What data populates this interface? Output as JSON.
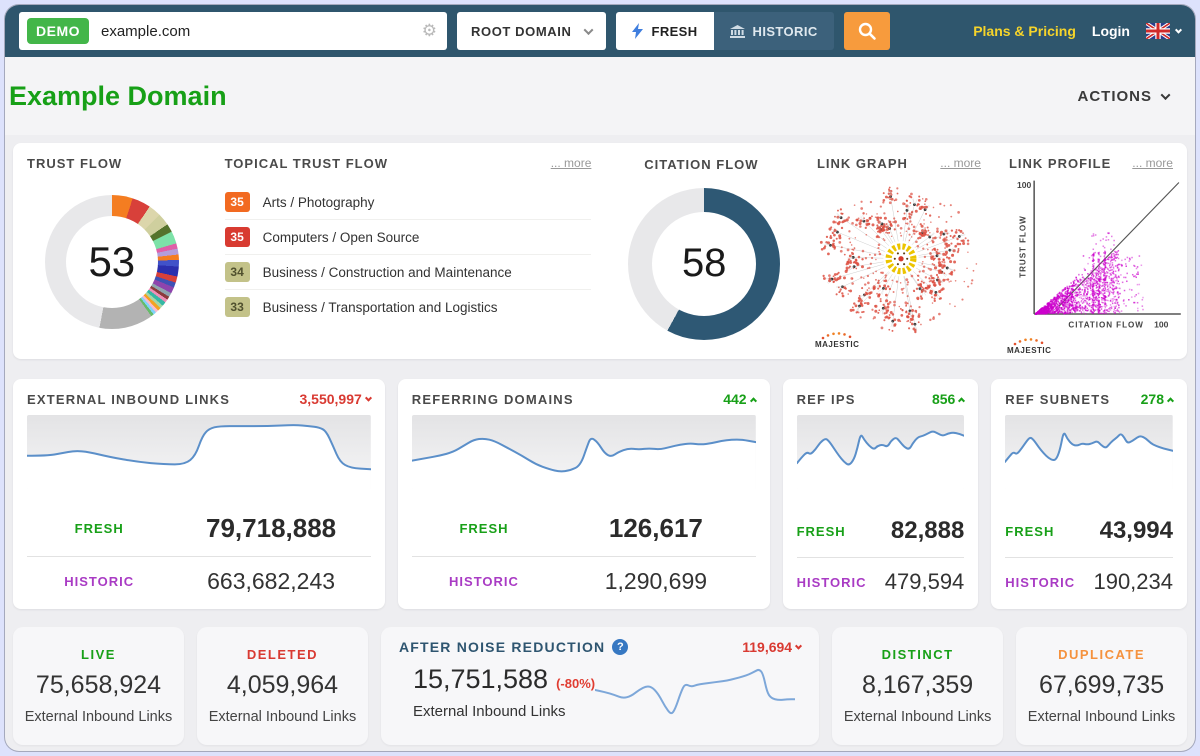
{
  "colors": {
    "header_bg": "#2f566d",
    "accent_orange": "#f79b3d",
    "fresh_green": "#18a018",
    "historic_purple": "#a93bc4",
    "delta_down_red": "#d93a32",
    "delta_up_green": "#18a018",
    "title_green": "#17a017",
    "citation_blue": "#2e5874"
  },
  "icons": {
    "gear": "⚙",
    "help": "?"
  },
  "header": {
    "demo_badge": "DEMO",
    "search_value": "example.com",
    "root_domain_label": "ROOT DOMAIN",
    "fresh_label": "FRESH",
    "historic_label": "HISTORIC",
    "plans_pricing": "Plans & Pricing",
    "login": "Login"
  },
  "title_bar": {
    "title": "Example Domain",
    "actions_label": "ACTIONS"
  },
  "panels": {
    "trust_flow": {
      "title": "TRUST FLOW",
      "value": "53"
    },
    "topical": {
      "title": "TOPICAL TRUST FLOW",
      "more": "... more",
      "items": [
        {
          "score": "35",
          "color": "#f26a21",
          "text_color": "#ffffff",
          "label": "Arts / Photography"
        },
        {
          "score": "35",
          "color": "#d83b31",
          "text_color": "#ffffff",
          "label": "Computers / Open Source"
        },
        {
          "score": "34",
          "color": "#c3c289",
          "text_color": "#50502e",
          "label": "Business / Construction and Maintenance"
        },
        {
          "score": "33",
          "color": "#c3c289",
          "text_color": "#50502e",
          "label": "Business / Transportation and Logistics"
        }
      ]
    },
    "citation_flow": {
      "title": "CITATION FLOW",
      "value": "58"
    },
    "link_graph": {
      "title": "LINK GRAPH",
      "more": "... more",
      "brand": "MAJESTIC"
    },
    "link_profile": {
      "title": "LINK PROFILE",
      "more": "... more",
      "brand": "MAJESTIC",
      "y_max_label": "100",
      "x_max_label": "100",
      "y_axis_label": "TRUST FLOW",
      "x_axis_label": "CITATION FLOW"
    }
  },
  "metric_cards": [
    {
      "title": "EXTERNAL INBOUND LINKS",
      "delta": "3,550,997",
      "delta_dir": "down",
      "fresh_label": "FRESH",
      "fresh_value": "79,718,888",
      "historic_label": "HISTORIC",
      "historic_value": "663,682,243"
    },
    {
      "title": "REFERRING DOMAINS",
      "delta": "442",
      "delta_dir": "up",
      "fresh_label": "FRESH",
      "fresh_value": "126,617",
      "historic_label": "HISTORIC",
      "historic_value": "1,290,699"
    },
    {
      "title": "REF IPS",
      "delta": "856",
      "delta_dir": "up",
      "fresh_label": "FRESH",
      "fresh_value": "82,888",
      "historic_label": "HISTORIC",
      "historic_value": "479,594"
    },
    {
      "title": "REF SUBNETS",
      "delta": "278",
      "delta_dir": "up",
      "fresh_label": "FRESH",
      "fresh_value": "43,994",
      "historic_label": "HISTORIC",
      "historic_value": "190,234"
    }
  ],
  "summary_cards": [
    {
      "label": "LIVE",
      "label_color": "#18a018",
      "value": "75,658,924",
      "caption": "External Inbound Links"
    },
    {
      "label": "DELETED",
      "label_color": "#d93a32",
      "value": "4,059,964",
      "caption": "External Inbound Links"
    },
    {
      "label": "DISTINCT",
      "label_color": "#18a018",
      "value": "8,167,359",
      "caption": "External Inbound Links"
    },
    {
      "label": "DUPLICATE",
      "label_color": "#f5923e",
      "value": "67,699,735",
      "caption": "External Inbound Links"
    }
  ],
  "noise_card": {
    "title": "AFTER NOISE REDUCTION",
    "delta": "119,694",
    "delta_dir": "down",
    "value": "15,751,588",
    "pct": "(-80%)",
    "caption": "External Inbound Links"
  },
  "chart_data": [
    {
      "id": "trust_flow_donut",
      "type": "pie",
      "title": "Trust Flow",
      "center_value": 53,
      "segments": [
        {
          "color": "#f47d21",
          "pct": 5
        },
        {
          "color": "#d8403a",
          "pct": 4.5
        },
        {
          "color": "#dcd6ab",
          "pct": 3
        },
        {
          "color": "#cfcf9e",
          "pct": 3
        },
        {
          "color": "#55732c",
          "pct": 2
        },
        {
          "color": "#7de2a8",
          "pct": 3
        },
        {
          "color": "#df5fa8",
          "pct": 1.3
        },
        {
          "color": "#b39ddb",
          "pct": 1.4
        },
        {
          "color": "#f47d21",
          "pct": 1.3
        },
        {
          "color": "#4152c9",
          "pct": 1.6
        },
        {
          "color": "#2b2fae",
          "pct": 2.4
        },
        {
          "color": "#d8403a",
          "pct": 1.5
        },
        {
          "color": "#3f51b5",
          "pct": 1.2
        },
        {
          "color": "#8e44ad",
          "pct": 1.5
        },
        {
          "color": "#90a4ae",
          "pct": 1
        },
        {
          "color": "#8d3b3b",
          "pct": 0.8
        },
        {
          "color": "#ef8fb8",
          "pct": 0.8
        },
        {
          "color": "#35b8a5",
          "pct": 1
        },
        {
          "color": "#a5d6a7",
          "pct": 0.8
        },
        {
          "color": "#f4a321",
          "pct": 0.8
        },
        {
          "color": "#f8bbd0",
          "pct": 0.7
        },
        {
          "color": "#81d4fa",
          "pct": 0.7
        },
        {
          "color": "#66bb6a",
          "pct": 0.7
        },
        {
          "color": "#b3b3b3",
          "pct": 13
        },
        {
          "color": "#e8e8ea",
          "pct": 47
        }
      ]
    },
    {
      "id": "citation_flow_donut",
      "type": "pie",
      "title": "Citation Flow",
      "center_value": 58,
      "segments": [
        {
          "color": "#2e5874",
          "pct": 58
        },
        {
          "color": "#e8e8ea",
          "pct": 42
        }
      ]
    },
    {
      "id": "external_inbound_links_trend",
      "type": "line",
      "color": "#5b8fc9",
      "area_bg": true,
      "ylim": [
        0,
        60
      ],
      "points": [
        [
          0,
          33
        ],
        [
          6,
          33
        ],
        [
          10,
          31
        ],
        [
          14,
          29
        ],
        [
          18,
          30
        ],
        [
          24,
          34
        ],
        [
          32,
          38
        ],
        [
          40,
          40
        ],
        [
          46,
          40
        ],
        [
          49,
          33
        ],
        [
          51,
          17
        ],
        [
          53,
          11
        ],
        [
          56,
          9
        ],
        [
          62,
          9
        ],
        [
          70,
          9
        ],
        [
          78,
          8
        ],
        [
          82,
          9
        ],
        [
          85,
          10
        ],
        [
          87,
          13
        ],
        [
          89,
          25
        ],
        [
          91,
          38
        ],
        [
          94,
          43
        ],
        [
          100,
          44
        ]
      ]
    },
    {
      "id": "referring_domains_trend",
      "type": "line",
      "color": "#5b8fc9",
      "area_bg": true,
      "ylim": [
        0,
        60
      ],
      "points": [
        [
          0,
          37
        ],
        [
          4,
          35
        ],
        [
          8,
          33
        ],
        [
          12,
          30
        ],
        [
          15,
          25
        ],
        [
          18,
          20
        ],
        [
          21,
          19
        ],
        [
          24,
          21
        ],
        [
          28,
          27
        ],
        [
          32,
          33
        ],
        [
          36,
          40
        ],
        [
          40,
          44
        ],
        [
          43,
          46
        ],
        [
          46,
          45
        ],
        [
          49,
          41
        ],
        [
          51,
          25
        ],
        [
          52,
          18
        ],
        [
          54,
          22
        ],
        [
          56,
          31
        ],
        [
          58,
          34
        ],
        [
          60,
          30
        ],
        [
          63,
          27
        ],
        [
          66,
          28
        ],
        [
          69,
          27
        ],
        [
          72,
          28
        ],
        [
          75,
          26
        ],
        [
          78,
          24
        ],
        [
          81,
          23
        ],
        [
          84,
          24
        ],
        [
          87,
          23
        ],
        [
          90,
          21
        ],
        [
          93,
          20
        ],
        [
          96,
          20
        ],
        [
          100,
          22
        ]
      ]
    },
    {
      "id": "ref_ips_trend",
      "type": "line",
      "color": "#5b8fc9",
      "area_bg": true,
      "ylim": [
        0,
        60
      ],
      "points": [
        [
          0,
          39
        ],
        [
          3,
          34
        ],
        [
          6,
          30
        ],
        [
          8,
          32
        ],
        [
          11,
          28
        ],
        [
          14,
          22
        ],
        [
          17,
          19
        ],
        [
          19,
          21
        ],
        [
          22,
          27
        ],
        [
          25,
          33
        ],
        [
          28,
          38
        ],
        [
          31,
          41
        ],
        [
          34,
          36
        ],
        [
          36,
          27
        ],
        [
          38,
          15
        ],
        [
          40,
          20
        ],
        [
          43,
          25
        ],
        [
          46,
          28
        ],
        [
          48,
          25
        ],
        [
          51,
          24
        ],
        [
          54,
          26
        ],
        [
          56,
          21
        ],
        [
          59,
          18
        ],
        [
          61,
          21
        ],
        [
          64,
          26
        ],
        [
          67,
          28
        ],
        [
          69,
          23
        ],
        [
          72,
          18
        ],
        [
          75,
          17
        ],
        [
          78,
          15
        ],
        [
          81,
          13
        ],
        [
          84,
          15
        ],
        [
          87,
          17
        ],
        [
          90,
          15
        ],
        [
          94,
          14
        ],
        [
          100,
          17
        ]
      ]
    },
    {
      "id": "ref_subnets_trend",
      "type": "line",
      "color": "#5b8fc9",
      "area_bg": true,
      "ylim": [
        0,
        60
      ],
      "points": [
        [
          0,
          38
        ],
        [
          3,
          33
        ],
        [
          5,
          30
        ],
        [
          7,
          32
        ],
        [
          10,
          27
        ],
        [
          13,
          21
        ],
        [
          15,
          18
        ],
        [
          17,
          20
        ],
        [
          20,
          26
        ],
        [
          23,
          31
        ],
        [
          26,
          35
        ],
        [
          29,
          37
        ],
        [
          31,
          35
        ],
        [
          33,
          27
        ],
        [
          35,
          13
        ],
        [
          37,
          19
        ],
        [
          40,
          24
        ],
        [
          43,
          25
        ],
        [
          46,
          23
        ],
        [
          49,
          24
        ],
        [
          52,
          23
        ],
        [
          55,
          21
        ],
        [
          57,
          24
        ],
        [
          60,
          27
        ],
        [
          62,
          24
        ],
        [
          64,
          21
        ],
        [
          67,
          18
        ],
        [
          69,
          15
        ],
        [
          71,
          18
        ],
        [
          73,
          23
        ],
        [
          76,
          21
        ],
        [
          79,
          18
        ],
        [
          81,
          17
        ],
        [
          84,
          19
        ],
        [
          87,
          23
        ],
        [
          90,
          25
        ],
        [
          94,
          27
        ],
        [
          100,
          29
        ]
      ]
    },
    {
      "id": "noise_reduction_trend",
      "type": "line",
      "color": "#7da7d9",
      "area_bg": false,
      "ylim": [
        0,
        60
      ],
      "points": [
        [
          0,
          28
        ],
        [
          5,
          30
        ],
        [
          10,
          33
        ],
        [
          14,
          36
        ],
        [
          18,
          34
        ],
        [
          22,
          28
        ],
        [
          26,
          24
        ],
        [
          29,
          26
        ],
        [
          32,
          33
        ],
        [
          35,
          44
        ],
        [
          38,
          52
        ],
        [
          40,
          47
        ],
        [
          43,
          30
        ],
        [
          45,
          22
        ],
        [
          48,
          25
        ],
        [
          51,
          23
        ],
        [
          54,
          22
        ],
        [
          58,
          21
        ],
        [
          62,
          20
        ],
        [
          66,
          19
        ],
        [
          70,
          17
        ],
        [
          74,
          15
        ],
        [
          77,
          13
        ],
        [
          80,
          10
        ],
        [
          82,
          8
        ],
        [
          84,
          12
        ],
        [
          86,
          30
        ],
        [
          88,
          36
        ],
        [
          92,
          38
        ],
        [
          96,
          37
        ],
        [
          100,
          37
        ]
      ]
    },
    {
      "id": "link_profile_scatter",
      "type": "scatter",
      "color": "#cc00cc",
      "xlabel": "CITATION FLOW",
      "ylabel": "TRUST FLOW",
      "xlim": [
        0,
        100
      ],
      "ylim": [
        0,
        100
      ],
      "description": "dense magenta point cloud below the diagonal, citation flow mostly 0-60, diagonal reference line to (100,100)"
    },
    {
      "id": "link_graph_network",
      "type": "scatter",
      "color": "#dd4f41",
      "description": "radial link graph: red node clusters radiating from central yellow-ringed root node"
    }
  ]
}
